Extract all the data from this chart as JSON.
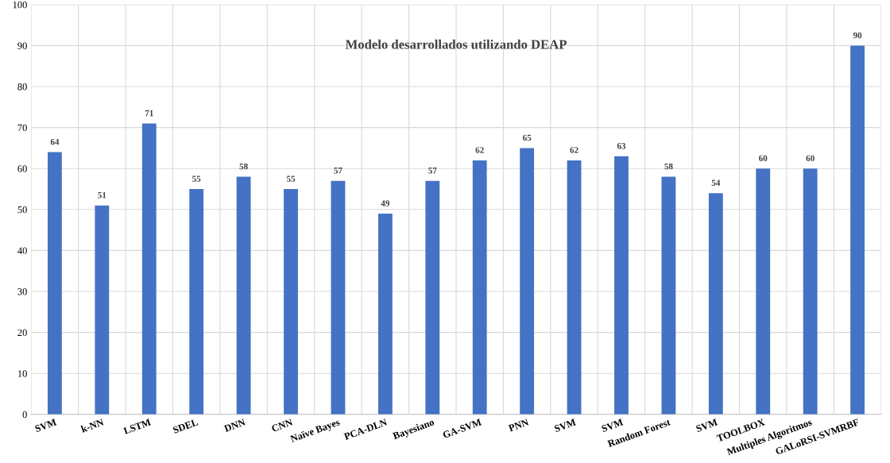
{
  "chart_data": {
    "type": "bar",
    "title": "Modelo desarrollados utilizando DEAP",
    "categories": [
      "SVM",
      "k-NN",
      "LSTM",
      "SDEL",
      "DNN",
      "CNN",
      "Naïve Bayes",
      "PCA-DLN",
      "Bayesiano",
      "GA-SVM",
      "PNN",
      "SVM",
      "SVM",
      "Random Forest",
      "SVM",
      "TOOLBOX",
      "Multiples Algoritmos",
      "GALoRSI-SVMRBF"
    ],
    "values": [
      64,
      51,
      71,
      55,
      58,
      55,
      57,
      49,
      57,
      62,
      65,
      62,
      63,
      58,
      54,
      60,
      60,
      90
    ],
    "color": "#4472c4",
    "ylim": [
      0,
      100
    ],
    "yticks": [
      0,
      10,
      20,
      30,
      40,
      50,
      60,
      70,
      80,
      90,
      100
    ],
    "grid": true,
    "data_labels": true
  }
}
